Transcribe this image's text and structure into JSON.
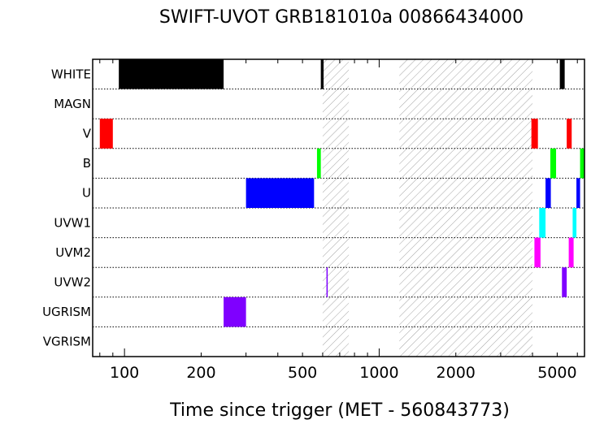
{
  "chart_data": {
    "type": "timeline",
    "title": "SWIFT-UVOT GRB181010a 00866434000",
    "xlabel": "Time since trigger (MET - 560843773)",
    "xscale": "log",
    "xlim": [
      75,
      6400
    ],
    "xticks": [
      {
        "value": 100,
        "label": "100"
      },
      {
        "value": 200,
        "label": "200"
      },
      {
        "value": 500,
        "label": "500"
      },
      {
        "value": 1000,
        "label": "1000"
      },
      {
        "value": 2000,
        "label": "2000"
      },
      {
        "value": 5000,
        "label": "5000"
      }
    ],
    "filters": [
      "WHITE",
      "MAGN",
      "V",
      "B",
      "U",
      "UVW1",
      "UVM2",
      "UVW2",
      "UGRISM",
      "VGRISM"
    ],
    "gaps": [
      {
        "start": 600,
        "end": 760
      },
      {
        "start": 1200,
        "end": 4000
      }
    ],
    "exposures": [
      {
        "filter": "WHITE",
        "start": 95,
        "end": 245,
        "color": "#000000"
      },
      {
        "filter": "WHITE",
        "start": 590,
        "end": 605,
        "color": "#000000"
      },
      {
        "filter": "WHITE",
        "start": 5120,
        "end": 5350,
        "color": "#000000"
      },
      {
        "filter": "V",
        "start": 80,
        "end": 90,
        "color": "#ff0000"
      },
      {
        "filter": "V",
        "start": 3960,
        "end": 4200,
        "color": "#ff0000"
      },
      {
        "filter": "V",
        "start": 5450,
        "end": 5700,
        "color": "#ff0000"
      },
      {
        "filter": "B",
        "start": 570,
        "end": 590,
        "color": "#00ff00"
      },
      {
        "filter": "B",
        "start": 4700,
        "end": 4950,
        "color": "#00ff00"
      },
      {
        "filter": "B",
        "start": 6150,
        "end": 6400,
        "color": "#00ff00"
      },
      {
        "filter": "U",
        "start": 300,
        "end": 555,
        "color": "#0000ff"
      },
      {
        "filter": "U",
        "start": 4500,
        "end": 4720,
        "color": "#0000ff"
      },
      {
        "filter": "U",
        "start": 5950,
        "end": 6150,
        "color": "#0000ff"
      },
      {
        "filter": "UVW1",
        "start": 4250,
        "end": 4500,
        "color": "#00ffff"
      },
      {
        "filter": "UVW1",
        "start": 5750,
        "end": 5950,
        "color": "#00ffff"
      },
      {
        "filter": "UVM2",
        "start": 4070,
        "end": 4300,
        "color": "#ff00ff"
      },
      {
        "filter": "UVM2",
        "start": 5550,
        "end": 5800,
        "color": "#ff00ff"
      },
      {
        "filter": "UVW2",
        "start": 621,
        "end": 627,
        "color": "#7f00ff"
      },
      {
        "filter": "UVW2",
        "start": 5220,
        "end": 5450,
        "color": "#7f00ff"
      },
      {
        "filter": "UGRISM",
        "start": 245,
        "end": 300,
        "color": "#7f00ff"
      }
    ]
  }
}
